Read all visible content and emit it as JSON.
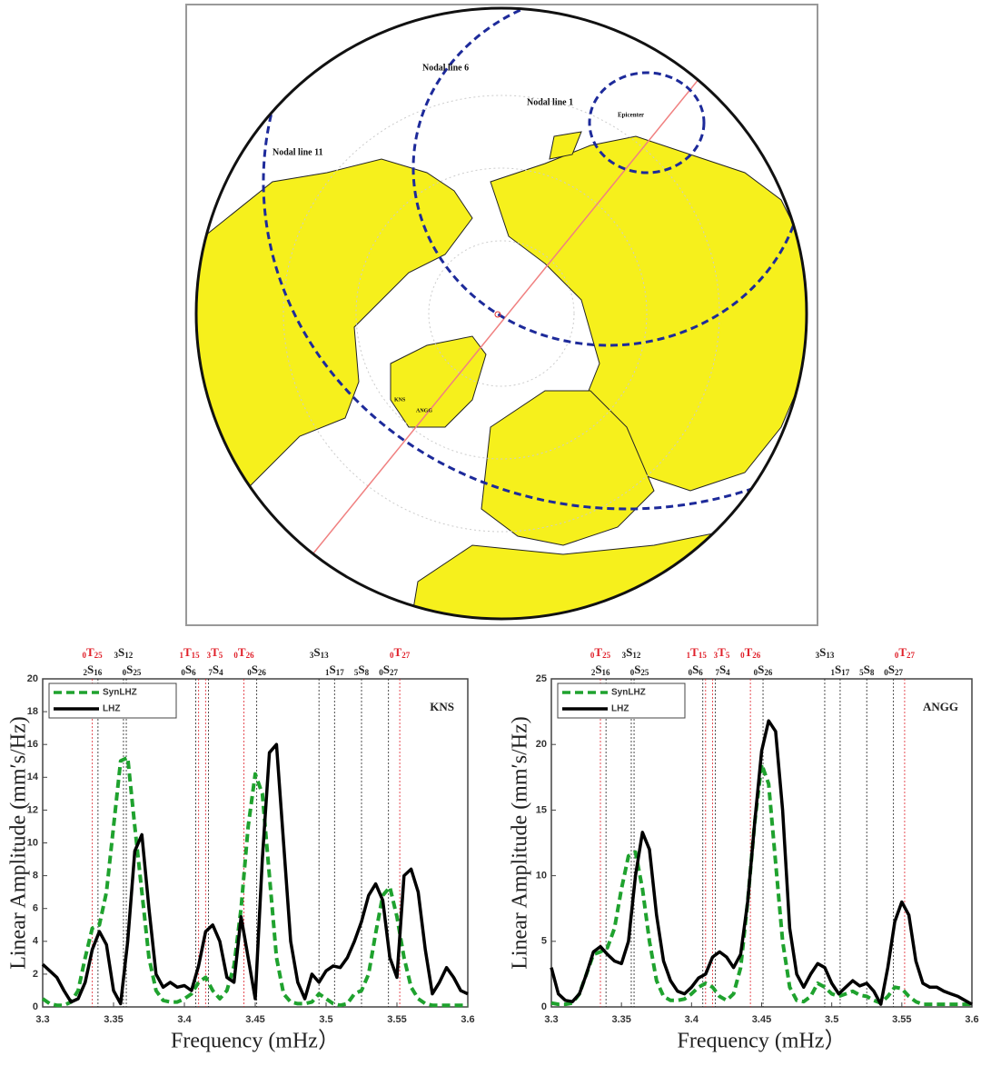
{
  "map": {
    "labels": [
      "Nodal line 6",
      "Nodal line 1",
      "Nodal line 11",
      "Epicenter",
      "KNS",
      "ANGG"
    ]
  },
  "chart_data": [
    {
      "type": "line",
      "station": "KNS",
      "ylabel": "Linear Amplitude (mm′s/Hz)",
      "xlabel": "Frequency (mHz）",
      "xlim": [
        3.3,
        3.6
      ],
      "xticks": [
        3.3,
        3.35,
        3.4,
        3.45,
        3.5,
        3.55,
        3.6
      ],
      "ylim": [
        0,
        20
      ],
      "yticks": [
        0,
        2,
        4,
        6,
        8,
        10,
        12,
        14,
        16,
        18,
        20
      ],
      "modes": [
        {
          "pre": "0",
          "letter": "T",
          "post": "25",
          "x": 3.335,
          "color": "#e0202a"
        },
        {
          "pre": "2",
          "letter": "S",
          "post": "16",
          "x": 3.339,
          "color": "#222222"
        },
        {
          "pre": "3",
          "letter": "S",
          "post": "12",
          "x": 3.357,
          "color": "#222222"
        },
        {
          "pre": "0",
          "letter": "S",
          "post": "25",
          "x": 3.359,
          "color": "#222222"
        },
        {
          "pre": "0",
          "letter": "S",
          "post": "6",
          "x": 3.408,
          "color": "#222222"
        },
        {
          "pre": "1",
          "letter": "T",
          "post": "15",
          "x": 3.41,
          "color": "#e0202a"
        },
        {
          "pre": "3",
          "letter": "T",
          "post": "5",
          "x": 3.415,
          "color": "#e0202a"
        },
        {
          "pre": "7",
          "letter": "S",
          "post": "4",
          "x": 3.417,
          "color": "#222222"
        },
        {
          "pre": "0",
          "letter": "T",
          "post": "26",
          "x": 3.442,
          "color": "#e0202a"
        },
        {
          "pre": "0",
          "letter": "S",
          "post": "26",
          "x": 3.451,
          "color": "#222222"
        },
        {
          "pre": "3",
          "letter": "S",
          "post": "13",
          "x": 3.495,
          "color": "#222222"
        },
        {
          "pre": "1",
          "letter": "S",
          "post": "17",
          "x": 3.506,
          "color": "#222222"
        },
        {
          "pre": "5",
          "letter": "S",
          "post": "8",
          "x": 3.525,
          "color": "#222222"
        },
        {
          "pre": "0",
          "letter": "S",
          "post": "27",
          "x": 3.544,
          "color": "#222222"
        },
        {
          "pre": "0",
          "letter": "T",
          "post": "27",
          "x": 3.552,
          "color": "#e0202a"
        }
      ],
      "x": [
        3.3,
        3.305,
        3.31,
        3.315,
        3.32,
        3.325,
        3.33,
        3.335,
        3.34,
        3.345,
        3.35,
        3.355,
        3.36,
        3.365,
        3.37,
        3.375,
        3.38,
        3.385,
        3.39,
        3.395,
        3.4,
        3.405,
        3.41,
        3.415,
        3.42,
        3.425,
        3.43,
        3.435,
        3.44,
        3.445,
        3.45,
        3.455,
        3.46,
        3.465,
        3.47,
        3.475,
        3.48,
        3.485,
        3.49,
        3.495,
        3.5,
        3.505,
        3.51,
        3.515,
        3.52,
        3.525,
        3.53,
        3.535,
        3.54,
        3.545,
        3.55,
        3.555,
        3.56,
        3.565,
        3.57,
        3.575,
        3.58,
        3.585,
        3.59,
        3.595,
        3.6
      ],
      "series": [
        {
          "name": "SynLHZ",
          "color": "#1fa22e",
          "dashed": true,
          "values": [
            0.5,
            0.2,
            0.1,
            0.1,
            0.3,
            1.0,
            3.0,
            4.8,
            5.0,
            7,
            11,
            15.0,
            15.2,
            11,
            7,
            3,
            1.0,
            0.4,
            0.3,
            0.3,
            0.5,
            0.8,
            1.5,
            1.8,
            1.0,
            0.5,
            1.0,
            2.5,
            6,
            11,
            14.2,
            13,
            8,
            3,
            0.8,
            0.3,
            0.2,
            0.2,
            0.3,
            0.8,
            0.5,
            0.2,
            0.1,
            0.2,
            0.8,
            1.0,
            2.0,
            4.5,
            6.8,
            7.3,
            5.5,
            3,
            1.2,
            0.5,
            0.2,
            0.1,
            0.1,
            0.1,
            0.1,
            0.1,
            0.1
          ]
        },
        {
          "name": "LHZ",
          "color": "#000000",
          "dashed": false,
          "values": [
            2.6,
            2.2,
            1.8,
            1.0,
            0.3,
            0.5,
            1.5,
            3.5,
            4.6,
            3.8,
            1.0,
            0.2,
            4,
            9.5,
            10.5,
            6,
            2,
            1.2,
            1.5,
            1.2,
            1.3,
            1.0,
            2.5,
            4.6,
            5.0,
            4.0,
            1.8,
            1.5,
            5.5,
            3.0,
            0.5,
            9,
            15.5,
            16,
            10,
            4,
            1.5,
            0.5,
            2.0,
            1.5,
            2.2,
            2.5,
            2.4,
            3.0,
            4.0,
            5.2,
            6.8,
            7.5,
            6.5,
            3,
            1.8,
            8.0,
            8.4,
            7,
            3.5,
            0.8,
            1.5,
            2.4,
            1.8,
            1.0,
            0.8
          ]
        }
      ]
    },
    {
      "type": "line",
      "station": "ANGG",
      "ylabel": "Linear Amplitude (mm′s/Hz)",
      "xlabel": "Frequency (mHz）",
      "xlim": [
        3.3,
        3.6
      ],
      "xticks": [
        3.3,
        3.35,
        3.4,
        3.45,
        3.5,
        3.55,
        3.6
      ],
      "ylim": [
        0,
        25
      ],
      "yticks": [
        0,
        5,
        10,
        15,
        20,
        25
      ],
      "modes": [
        {
          "pre": "0",
          "letter": "T",
          "post": "25",
          "x": 3.335,
          "color": "#e0202a"
        },
        {
          "pre": "2",
          "letter": "S",
          "post": "16",
          "x": 3.339,
          "color": "#222222"
        },
        {
          "pre": "3",
          "letter": "S",
          "post": "12",
          "x": 3.357,
          "color": "#222222"
        },
        {
          "pre": "0",
          "letter": "S",
          "post": "25",
          "x": 3.359,
          "color": "#222222"
        },
        {
          "pre": "0",
          "letter": "S",
          "post": "6",
          "x": 3.408,
          "color": "#222222"
        },
        {
          "pre": "1",
          "letter": "T",
          "post": "15",
          "x": 3.41,
          "color": "#e0202a"
        },
        {
          "pre": "3",
          "letter": "T",
          "post": "5",
          "x": 3.415,
          "color": "#e0202a"
        },
        {
          "pre": "7",
          "letter": "S",
          "post": "4",
          "x": 3.417,
          "color": "#222222"
        },
        {
          "pre": "0",
          "letter": "T",
          "post": "26",
          "x": 3.442,
          "color": "#e0202a"
        },
        {
          "pre": "0",
          "letter": "S",
          "post": "26",
          "x": 3.451,
          "color": "#222222"
        },
        {
          "pre": "3",
          "letter": "S",
          "post": "13",
          "x": 3.495,
          "color": "#222222"
        },
        {
          "pre": "1",
          "letter": "S",
          "post": "17",
          "x": 3.506,
          "color": "#222222"
        },
        {
          "pre": "5",
          "letter": "S",
          "post": "8",
          "x": 3.525,
          "color": "#222222"
        },
        {
          "pre": "0",
          "letter": "S",
          "post": "27",
          "x": 3.544,
          "color": "#222222"
        },
        {
          "pre": "0",
          "letter": "T",
          "post": "27",
          "x": 3.552,
          "color": "#e0202a"
        }
      ],
      "x": [
        3.3,
        3.305,
        3.31,
        3.315,
        3.32,
        3.325,
        3.33,
        3.335,
        3.34,
        3.345,
        3.35,
        3.355,
        3.36,
        3.365,
        3.37,
        3.375,
        3.38,
        3.385,
        3.39,
        3.395,
        3.4,
        3.405,
        3.41,
        3.415,
        3.42,
        3.425,
        3.43,
        3.435,
        3.44,
        3.445,
        3.45,
        3.455,
        3.46,
        3.465,
        3.47,
        3.475,
        3.48,
        3.485,
        3.49,
        3.495,
        3.5,
        3.505,
        3.51,
        3.515,
        3.52,
        3.525,
        3.53,
        3.535,
        3.54,
        3.545,
        3.55,
        3.555,
        3.56,
        3.565,
        3.57,
        3.575,
        3.58,
        3.585,
        3.59,
        3.595,
        3.6
      ],
      "series": [
        {
          "name": "SynLHZ",
          "color": "#1fa22e",
          "dashed": true,
          "values": [
            0.3,
            0.2,
            0.2,
            0.3,
            1.0,
            2.5,
            4.0,
            4.2,
            4.5,
            6,
            9,
            11.5,
            11.8,
            9,
            5,
            2,
            0.8,
            0.5,
            0.5,
            0.6,
            1.0,
            1.5,
            1.8,
            1.5,
            0.8,
            0.5,
            1,
            3,
            8,
            14,
            18.5,
            17,
            11,
            5,
            1.5,
            0.5,
            0.4,
            0.8,
            1.8,
            1.5,
            1.0,
            0.8,
            1.0,
            1.2,
            0.9,
            0.8,
            0.5,
            0.3,
            0.8,
            1.5,
            1.4,
            0.8,
            0.4,
            0.2,
            0.2,
            0.2,
            0.2,
            0.2,
            0.2,
            0.2,
            0.2
          ]
        },
        {
          "name": "LHZ",
          "color": "#000000",
          "dashed": false,
          "values": [
            3.0,
            1.0,
            0.5,
            0.4,
            1.0,
            2.5,
            4.2,
            4.6,
            4.0,
            3.5,
            3.3,
            5,
            10,
            13.3,
            12,
            7,
            3.5,
            2,
            1.2,
            1.0,
            1.5,
            2.2,
            2.5,
            3.8,
            4.2,
            3.8,
            3.0,
            4,
            8,
            14,
            19.5,
            21.8,
            21,
            15,
            6,
            2.5,
            1.5,
            2.5,
            3.3,
            3.0,
            1.8,
            1.0,
            1.5,
            2.0,
            1.6,
            1.8,
            1.2,
            0.2,
            3.0,
            6.5,
            8.0,
            7.0,
            3.5,
            1.8,
            1.5,
            1.5,
            1.2,
            1.0,
            0.8,
            0.5,
            0.2
          ]
        }
      ]
    }
  ]
}
